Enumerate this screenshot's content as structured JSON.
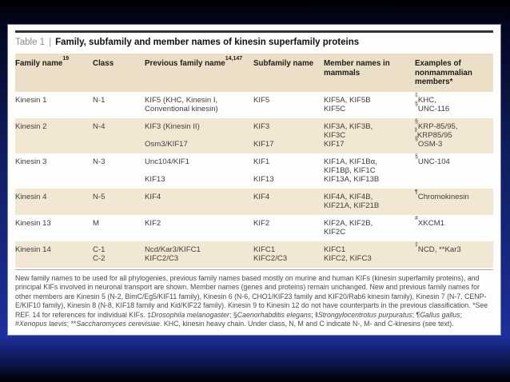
{
  "table": {
    "label": "Table 1",
    "separator": "|",
    "title": "Family, subfamily and member names of kinesin superfamily proteins",
    "headers": [
      {
        "label": "Family name",
        "sup": "19"
      },
      {
        "label": "Class",
        "sup": ""
      },
      {
        "label": "Previous family name",
        "sup": "14,147"
      },
      {
        "label": "Subfamily name",
        "sup": ""
      },
      {
        "label": "Member names in mammals",
        "sup": ""
      },
      {
        "label": "Examples of nonmammalian members*",
        "sup": ""
      }
    ],
    "rows": [
      {
        "cells": [
          [
            "Kinesin 1"
          ],
          [
            "N-1"
          ],
          [
            "KIF5 (KHC, Kinesin I,",
            "Conventional kinesin)"
          ],
          [
            "KIF5"
          ],
          [
            "KIF5A, KIF5B",
            "KIF5C"
          ],
          [
            "‡KHC,",
            "§UNC-116"
          ]
        ]
      },
      {
        "cells": [
          [
            "Kinesin 2"
          ],
          [
            "N-4"
          ],
          [
            "KIF3 (Kinesin II)",
            "",
            "Osm3/KIF17"
          ],
          [
            "KIF3",
            "",
            "KIF17"
          ],
          [
            "KIF3A, KIF3B,",
            "KIF3C",
            "KIF17"
          ],
          [
            "§KRP-85/95,",
            "‖KRP85/95",
            "§OSM-3"
          ]
        ]
      },
      {
        "cells": [
          [
            "Kinesin 3"
          ],
          [
            "N-3"
          ],
          [
            "Unc104/KIF1",
            "",
            "KIF13"
          ],
          [
            "KIF1",
            "",
            "KIF13"
          ],
          [
            "KIF1A, KIF1Bα,",
            "KIF1Bβ, KIF1C",
            "KIF13A, KIF13B"
          ],
          [
            "§UNC-104"
          ]
        ]
      },
      {
        "cells": [
          [
            "Kinesin 4"
          ],
          [
            "N-5"
          ],
          [
            "KIF4"
          ],
          [
            "KIF4"
          ],
          [
            "KIF4A, KIF4B,",
            "KIF21A, KIF21B"
          ],
          [
            "¶Chromokinesin"
          ]
        ]
      },
      {
        "cells": [
          [
            "Kinesin 13"
          ],
          [
            "M"
          ],
          [
            "KIF2"
          ],
          [
            "KIF2"
          ],
          [
            "KIF2A, KIF2B,",
            "KIF2C"
          ],
          [
            "#XKCM1"
          ]
        ]
      },
      {
        "cells": [
          [
            "Kinesin 14"
          ],
          [
            "C-1",
            "C-2"
          ],
          [
            "Ncd/Kar3/KIFC1",
            "KIFC2/C3"
          ],
          [
            "KIFC1",
            "KIFC2/C3"
          ],
          [
            "KIFC1",
            "KIFC2, KIFC3"
          ],
          [
            "‡NCD, **Kar3"
          ]
        ]
      }
    ]
  },
  "footnote": {
    "segments": [
      {
        "text": "New family names to be used for all phylogenies, previous family names based mostly on murine and human KIFs (kinesin superfamily proteins), and principal KIFs involved in neuronal transport are shown. Member names (genes and proteins) remain unchanged. New and previous family names for other members are Kinesin 5 (N-2, BimC/Eg5/KIF11 family), Kinesin 6 (N-6, CHO1/KIF23 family and KIF20/Rab6 kinesin family), Kinesin 7 (N-7, CENP-E/KIF10 family), Kinesin 8 (N-8, KIF18 family and Kid/KIF22 family). Kinesin 9 to Kinesin 12 do not have counterparts in the previous classification. *See REF. 14 for references for individual KIFs. ‡"
      },
      {
        "text": "Drosophila melanogaster",
        "italic": true
      },
      {
        "text": "; §"
      },
      {
        "text": "Caenorhabditis elegans",
        "italic": true
      },
      {
        "text": "; ‖"
      },
      {
        "text": "Strongylocentrotus purpuratus",
        "italic": true
      },
      {
        "text": "; ¶"
      },
      {
        "text": "Gallus gallus",
        "italic": true
      },
      {
        "text": "; #"
      },
      {
        "text": "Xenopus laevis",
        "italic": true
      },
      {
        "text": "; **"
      },
      {
        "text": "Saccharomyces cerevisiae",
        "italic": true
      },
      {
        "text": ". KHC, kinesin heavy chain. Under class, N, M and C indicate N-, M- and C-kinesins (see text)."
      }
    ]
  },
  "colors": {
    "header_band": "#ebdfc7",
    "shaded_row": "#f2e7d3",
    "slide_blue": "#1d309a",
    "rule_dark": "#343434"
  }
}
